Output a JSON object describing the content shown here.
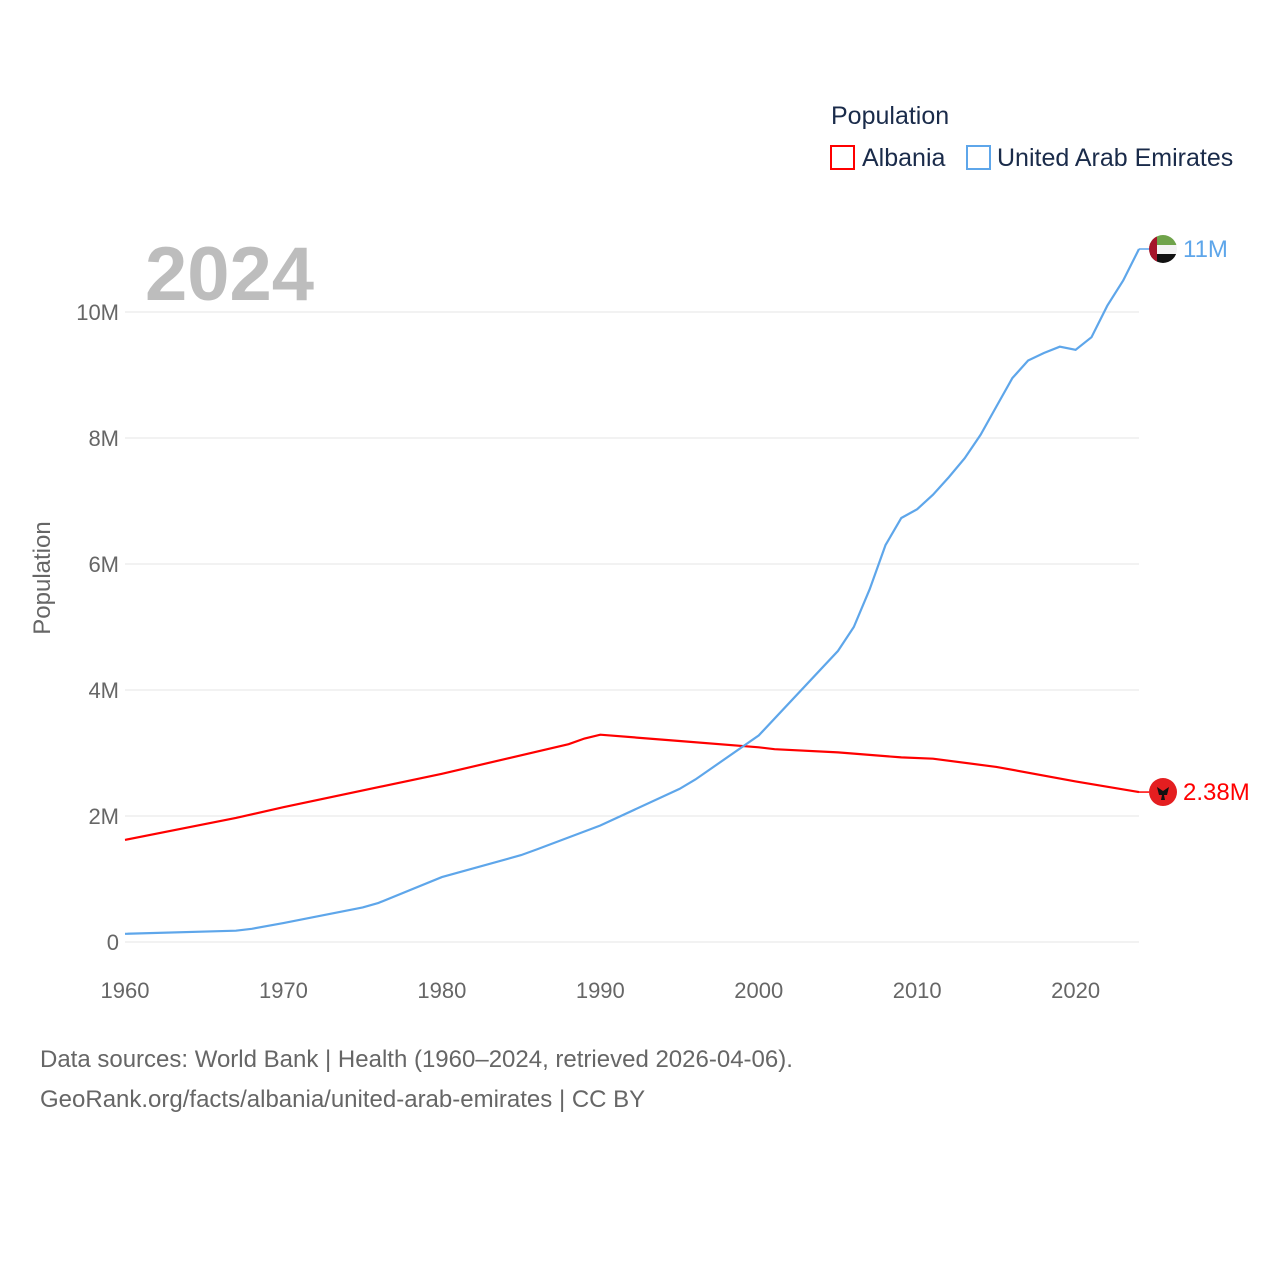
{
  "chart_data": {
    "type": "line",
    "title": "",
    "year_label": "2024",
    "xlabel": "",
    "ylabel": "Population",
    "xlim": [
      1960,
      2024
    ],
    "ylim": [
      0,
      11000000
    ],
    "grid": true,
    "x_ticks": [
      1960,
      1970,
      1980,
      1990,
      2000,
      2010,
      2020
    ],
    "x_tick_labels": [
      "1960",
      "1970",
      "1980",
      "1990",
      "2000",
      "2010",
      "2020"
    ],
    "y_ticks": [
      0,
      2000000,
      4000000,
      6000000,
      8000000,
      10000000
    ],
    "y_tick_labels": [
      "0",
      "2M",
      "4M",
      "6M",
      "8M",
      "10M"
    ],
    "legend": {
      "title": "Population",
      "position": "top-right"
    },
    "series": [
      {
        "name": "Albania",
        "color": "#ff0000",
        "end_label": "2.38M",
        "flag_icon": "albania-flag",
        "x": [
          1960,
          1967,
          1970,
          1980,
          1988,
          1989,
          1990,
          1995,
          2000,
          2001,
          2005,
          2009,
          2011,
          2015,
          2020,
          2024
        ],
        "values": [
          1620000,
          1970000,
          2140000,
          2670000,
          3140000,
          3230000,
          3290000,
          3190000,
          3090000,
          3060000,
          3010000,
          2930000,
          2910000,
          2780000,
          2550000,
          2380000
        ]
      },
      {
        "name": "United Arab Emirates",
        "color": "#5ea6ea",
        "end_label": "11M",
        "flag_icon": "uae-flag",
        "x": [
          1960,
          1967,
          1968,
          1970,
          1975,
          1976,
          1980,
          1981,
          1985,
          1986,
          1990,
          1995,
          1996,
          2000,
          2005,
          2006,
          2007,
          2008,
          2009,
          2010,
          2011,
          2012,
          2013,
          2014,
          2015,
          2016,
          2017,
          2018,
          2019,
          2020,
          2021,
          2022,
          2023,
          2024
        ],
        "values": [
          130000,
          180000,
          210000,
          300000,
          550000,
          620000,
          1030000,
          1100000,
          1380000,
          1470000,
          1850000,
          2430000,
          2580000,
          3280000,
          4620000,
          5000000,
          5600000,
          6300000,
          6730000,
          6870000,
          7100000,
          7380000,
          7680000,
          8050000,
          8500000,
          8950000,
          9230000,
          9350000,
          9450000,
          9400000,
          9600000,
          10100000,
          10500000,
          11000000
        ]
      }
    ]
  },
  "footer": {
    "line1": "Data sources: World Bank | Health (1960–2024, retrieved 2026-04-06).",
    "line2": "GeoRank.org/facts/albania/united-arab-emirates | CC BY"
  }
}
